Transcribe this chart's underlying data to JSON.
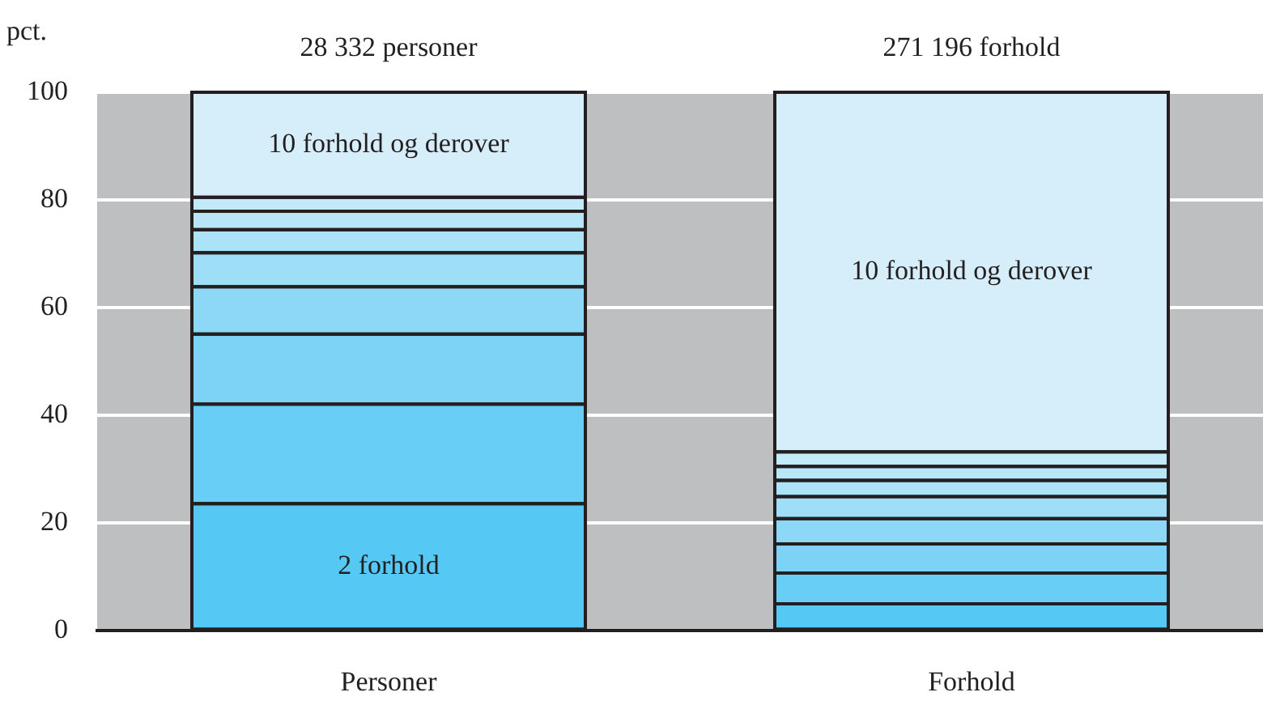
{
  "chart_data": {
    "type": "bar",
    "stacked": true,
    "ylabel": "pct.",
    "categories": [
      "Personer",
      "Forhold"
    ],
    "series": [
      {
        "name": "2 forhold",
        "color": "#55c9f4",
        "values": [
          23.6,
          5.0
        ]
      },
      {
        "color": "#69cef5",
        "values": [
          18.5,
          5.7
        ]
      },
      {
        "color": "#7dd3f5",
        "values": [
          13.0,
          5.4
        ]
      },
      {
        "color": "#8dd8f6",
        "values": [
          8.8,
          4.7
        ]
      },
      {
        "color": "#9edef7",
        "values": [
          6.3,
          4.1
        ]
      },
      {
        "color": "#ade3f8",
        "values": [
          4.3,
          3.0
        ]
      },
      {
        "color": "#b8e6f8",
        "values": [
          3.4,
          2.6
        ]
      },
      {
        "color": "#c3eaf9",
        "values": [
          2.6,
          2.7
        ]
      },
      {
        "name": "10 forhold og derover",
        "color": "#d6eefa",
        "values": [
          19.5,
          66.8
        ]
      }
    ],
    "annotations": [
      "28 332 personer",
      "271 196 forhold"
    ],
    "ylim": [
      0,
      100
    ],
    "yticks": [
      0,
      20,
      40,
      60,
      80,
      100
    ],
    "grid": "y",
    "legend": false
  }
}
